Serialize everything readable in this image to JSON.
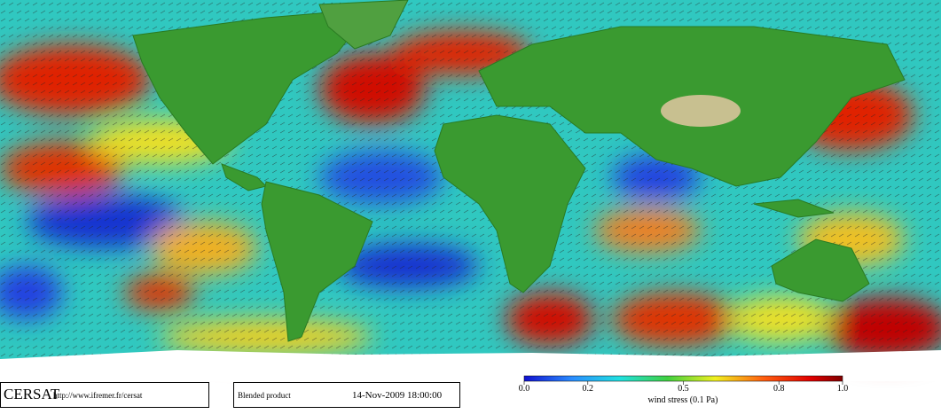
{
  "footer": {
    "logo": "CERSAT",
    "url": "http://www.ifremer.fr/cersat",
    "product": "Blended product",
    "date": "14-Nov-2009 18:00:00"
  },
  "colorbar": {
    "title": "wind stress (0.1 Pa)",
    "lim": [
      0,
      1
    ],
    "ticks": [
      {
        "value": 0,
        "label": "0.0"
      },
      0.2,
      0.5,
      0.8,
      {
        "value": 1,
        "label": "1.0"
      }
    ]
  }
}
